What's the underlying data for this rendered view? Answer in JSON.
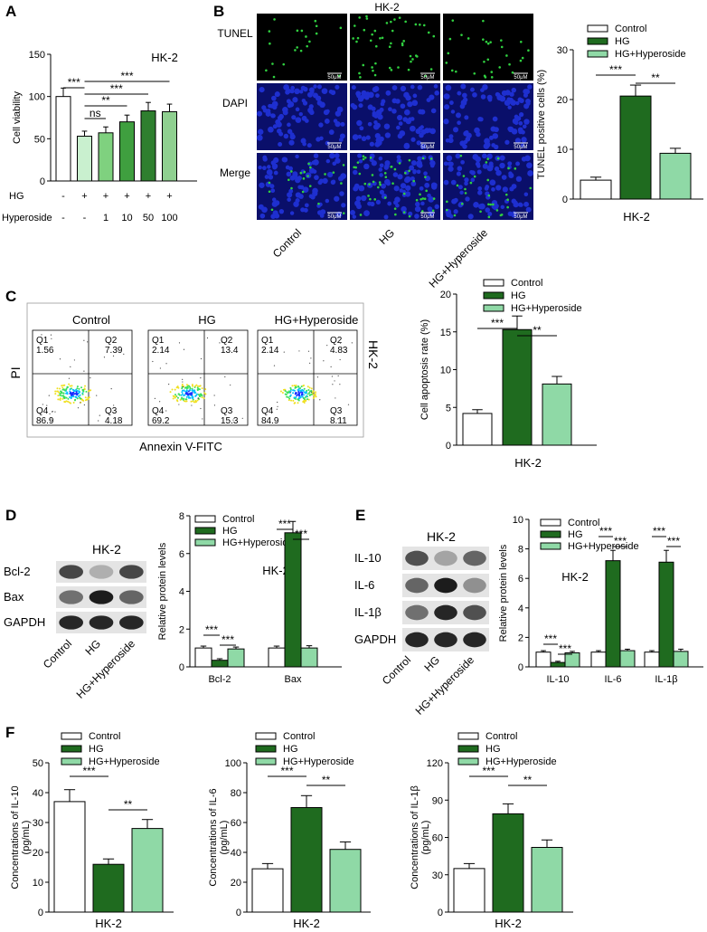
{
  "panel_letters": [
    "A",
    "B",
    "C",
    "D",
    "E",
    "F"
  ],
  "colors": {
    "control": "#ffffff",
    "hg": "#1f6b1f",
    "hyp": "#8fd9a6",
    "dose": [
      "#ffffff",
      "#c9f0cf",
      "#7fd17f",
      "#3f9f3f",
      "#2f7f2f",
      "#8fd090"
    ],
    "dapi": "#1e2fd0",
    "tunel": "#30d040"
  },
  "legend": {
    "control": "Control",
    "hg": "HG",
    "hyp": "HG+Hyperoside"
  },
  "cell_line": "HK-2",
  "panelA": {
    "chart_data": {
      "type": "bar",
      "title": "HK-2",
      "ylabel": "Cell viability",
      "ylim": [
        0,
        150
      ],
      "yticks": [
        0,
        50,
        100,
        150
      ],
      "row_labels": [
        "HG",
        "Hyperoside"
      ],
      "hg_row": [
        "-",
        "+",
        "+",
        "+",
        "+",
        "+"
      ],
      "hyperoside_row": [
        "-",
        "-",
        "1",
        "10",
        "50",
        "100"
      ],
      "values": [
        100,
        53,
        57,
        70,
        83,
        82
      ],
      "errors": [
        10,
        6,
        7,
        8,
        10,
        9
      ],
      "significance": [
        "***",
        "ns",
        "**",
        "***",
        "***"
      ]
    }
  },
  "panelB": {
    "image_header": "HK-2",
    "row_labels": [
      "TUNEL",
      "DAPI",
      "Merge"
    ],
    "col_labels": [
      "Control",
      "HG",
      "HG+Hyperoside"
    ],
    "scale_bar": "50μM",
    "chart_data": {
      "type": "bar",
      "categories": [
        "Control",
        "HG",
        "HG+Hyperoside"
      ],
      "ylabel": "TUNEL positive cells (%)",
      "xlabel": "HK-2",
      "ylim": [
        0,
        30
      ],
      "yticks": [
        0,
        10,
        20,
        30
      ],
      "values": [
        3.8,
        20.7,
        9.2
      ],
      "errors": [
        0.6,
        2.2,
        1.0
      ],
      "significance": [
        "***",
        "**"
      ]
    }
  },
  "panelC": {
    "xlabel": "Annexin V-FITC",
    "ylabel": "PI",
    "side_label": "HK-2",
    "flow": [
      {
        "title": "Control",
        "q1": "1.56",
        "q2": "7.39",
        "q3": "4.18",
        "q4": "86.9"
      },
      {
        "title": "HG",
        "q1": "2.14",
        "q2": "13.4",
        "q3": "15.3",
        "q4": "69.2"
      },
      {
        "title": "HG+Hyperoside",
        "q1": "2.14",
        "q2": "4.83",
        "q3": "8.11",
        "q4": "84.9"
      }
    ],
    "quadrants": [
      "Q1",
      "Q2",
      "Q3",
      "Q4"
    ],
    "chart_data": {
      "type": "bar",
      "categories": [
        "Control",
        "HG",
        "HG+Hyperoside"
      ],
      "ylabel": "Cell apoptosis rate (%)",
      "xlabel": "HK-2",
      "ylim": [
        0,
        20
      ],
      "yticks": [
        0,
        5,
        10,
        15,
        20
      ],
      "values": [
        4.2,
        15.3,
        8.1
      ],
      "errors": [
        0.5,
        1.8,
        1.0
      ],
      "significance": [
        "***",
        "**"
      ]
    }
  },
  "panelD": {
    "blot_title": "HK-2",
    "bands": [
      "Bcl-2",
      "Bax",
      "GAPDH"
    ],
    "lanes": [
      "Control",
      "HG",
      "HG+Hyperoside"
    ],
    "chart_data": {
      "type": "bar",
      "title": "HK-2",
      "ylabel": "Relative protein levels",
      "categories": [
        "Bcl-2",
        "Bax"
      ],
      "ylim": [
        0,
        8
      ],
      "yticks": [
        0,
        2,
        4,
        6,
        8
      ],
      "series": [
        {
          "name": "Control",
          "values": [
            1.0,
            1.0
          ],
          "errors": [
            0.1,
            0.1
          ]
        },
        {
          "name": "HG",
          "values": [
            0.35,
            7.1
          ],
          "errors": [
            0.08,
            0.6
          ]
        },
        {
          "name": "HG+Hyperoside",
          "values": [
            0.95,
            1.0
          ],
          "errors": [
            0.1,
            0.12
          ]
        }
      ],
      "significance": [
        "***",
        "***",
        "***",
        "***"
      ]
    }
  },
  "panelE": {
    "blot_title": "HK-2",
    "bands": [
      "IL-10",
      "IL-6",
      "IL-1β",
      "GAPDH"
    ],
    "lanes": [
      "Control",
      "HG",
      "HG+Hyperoside"
    ],
    "chart_data": {
      "type": "bar",
      "title": "HK-2",
      "ylabel": "Relative protein levels",
      "categories": [
        "IL-10",
        "IL-6",
        "IL-1β"
      ],
      "ylim": [
        0,
        10
      ],
      "yticks": [
        0,
        2,
        4,
        6,
        8,
        10
      ],
      "series": [
        {
          "name": "Control",
          "values": [
            1.0,
            1.0,
            1.0
          ],
          "errors": [
            0.1,
            0.1,
            0.1
          ]
        },
        {
          "name": "HG",
          "values": [
            0.3,
            7.2,
            7.1
          ],
          "errors": [
            0.08,
            0.7,
            0.8
          ]
        },
        {
          "name": "HG+Hyperoside",
          "values": [
            0.95,
            1.1,
            1.05
          ],
          "errors": [
            0.1,
            0.1,
            0.15
          ]
        }
      ],
      "significance": [
        "***",
        "***",
        "***",
        "***",
        "***",
        "***"
      ]
    }
  },
  "panelF": [
    {
      "chart_data": {
        "type": "bar",
        "categories": [
          "Control",
          "HG",
          "HG+Hyperoside"
        ],
        "ylabel": "Concentrations of IL-10",
        "yunit": "(pg/mL)",
        "xlabel": "HK-2",
        "ylim": [
          0,
          50
        ],
        "yticks": [
          0,
          10,
          20,
          30,
          40,
          50
        ],
        "values": [
          37,
          16,
          28
        ],
        "errors": [
          4,
          1.8,
          3
        ],
        "significance": [
          "***",
          "**"
        ]
      }
    },
    {
      "chart_data": {
        "type": "bar",
        "categories": [
          "Control",
          "HG",
          "HG+Hyperoside"
        ],
        "ylabel": "Concentrations of IL-6",
        "yunit": "(pg/mL)",
        "xlabel": "HK-2",
        "ylim": [
          0,
          100
        ],
        "yticks": [
          0,
          20,
          40,
          60,
          80,
          100
        ],
        "values": [
          29,
          70,
          42
        ],
        "errors": [
          3.5,
          8,
          5
        ],
        "significance": [
          "***",
          "**"
        ]
      }
    },
    {
      "chart_data": {
        "type": "bar",
        "categories": [
          "Control",
          "HG",
          "HG+Hyperoside"
        ],
        "ylabel": "Concentrations of IL-1β",
        "yunit": "(pg/mL)",
        "xlabel": "HK-2",
        "ylim": [
          0,
          120
        ],
        "yticks": [
          0,
          30,
          60,
          90,
          120
        ],
        "values": [
          35,
          79,
          52
        ],
        "errors": [
          4,
          8,
          6
        ],
        "significance": [
          "***",
          "**"
        ]
      }
    }
  ]
}
